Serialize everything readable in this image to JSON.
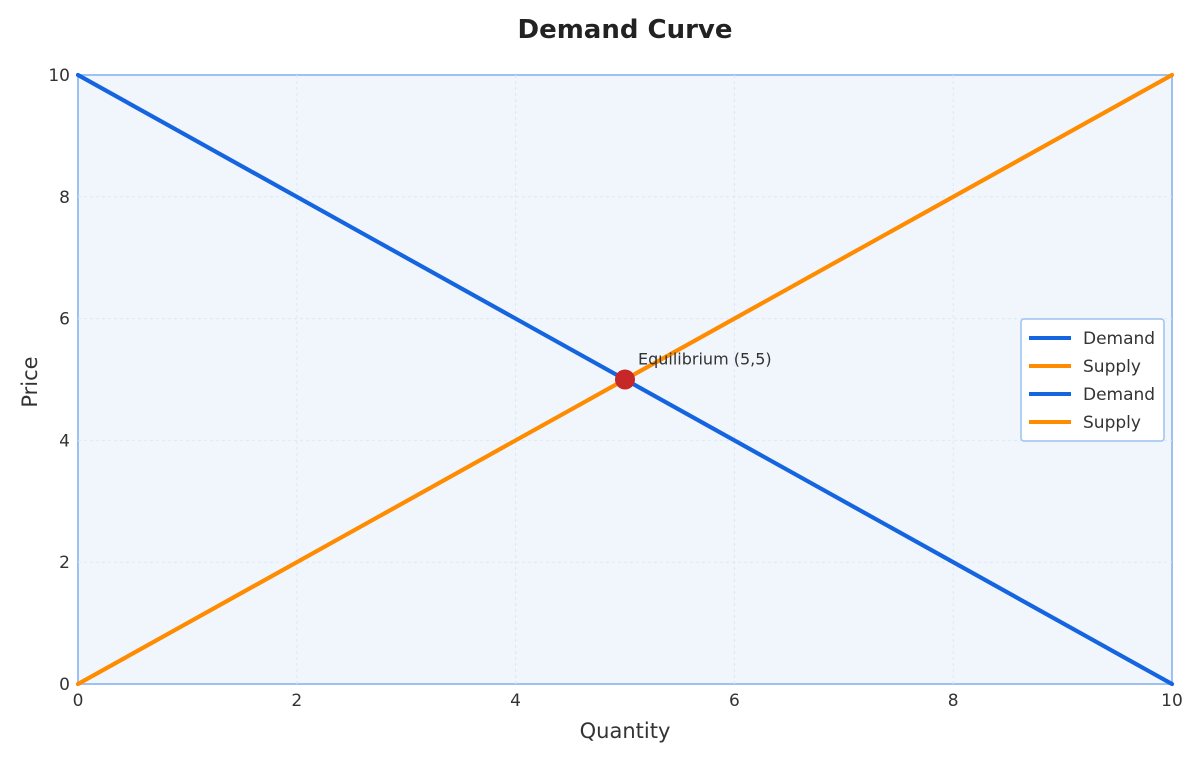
{
  "chart_data": {
    "type": "line",
    "title": "Demand Curve",
    "xlabel": "Quantity",
    "ylabel": "Price",
    "xlim": [
      0,
      10
    ],
    "ylim": [
      0,
      10
    ],
    "x_ticks": [
      0,
      2,
      4,
      6,
      8,
      10
    ],
    "y_ticks": [
      0,
      2,
      4,
      6,
      8,
      10
    ],
    "grid": true,
    "legend_position": "center-right",
    "series": [
      {
        "name": "Demand",
        "color": "#1565e0",
        "x": [
          0,
          10
        ],
        "y": [
          10,
          0
        ]
      },
      {
        "name": "Supply",
        "color": "#ff8c00",
        "x": [
          0,
          10
        ],
        "y": [
          0,
          10
        ]
      },
      {
        "name": "Demand",
        "color": "#1565e0",
        "x": [
          0,
          10
        ],
        "y": [
          10,
          0
        ]
      },
      {
        "name": "Supply",
        "color": "#ff8c00",
        "x": [
          0,
          10
        ],
        "y": [
          0,
          10
        ]
      }
    ],
    "points": [
      {
        "x": 5,
        "y": 5,
        "color": "#c62828"
      }
    ],
    "annotations": [
      {
        "text": "Equilibrium (5,5)",
        "x": 5,
        "y": 5
      }
    ],
    "colors": {
      "plot_background": "#f1f6fd",
      "plot_border": "#9cc1f2",
      "grid": "#dde7f5"
    }
  }
}
